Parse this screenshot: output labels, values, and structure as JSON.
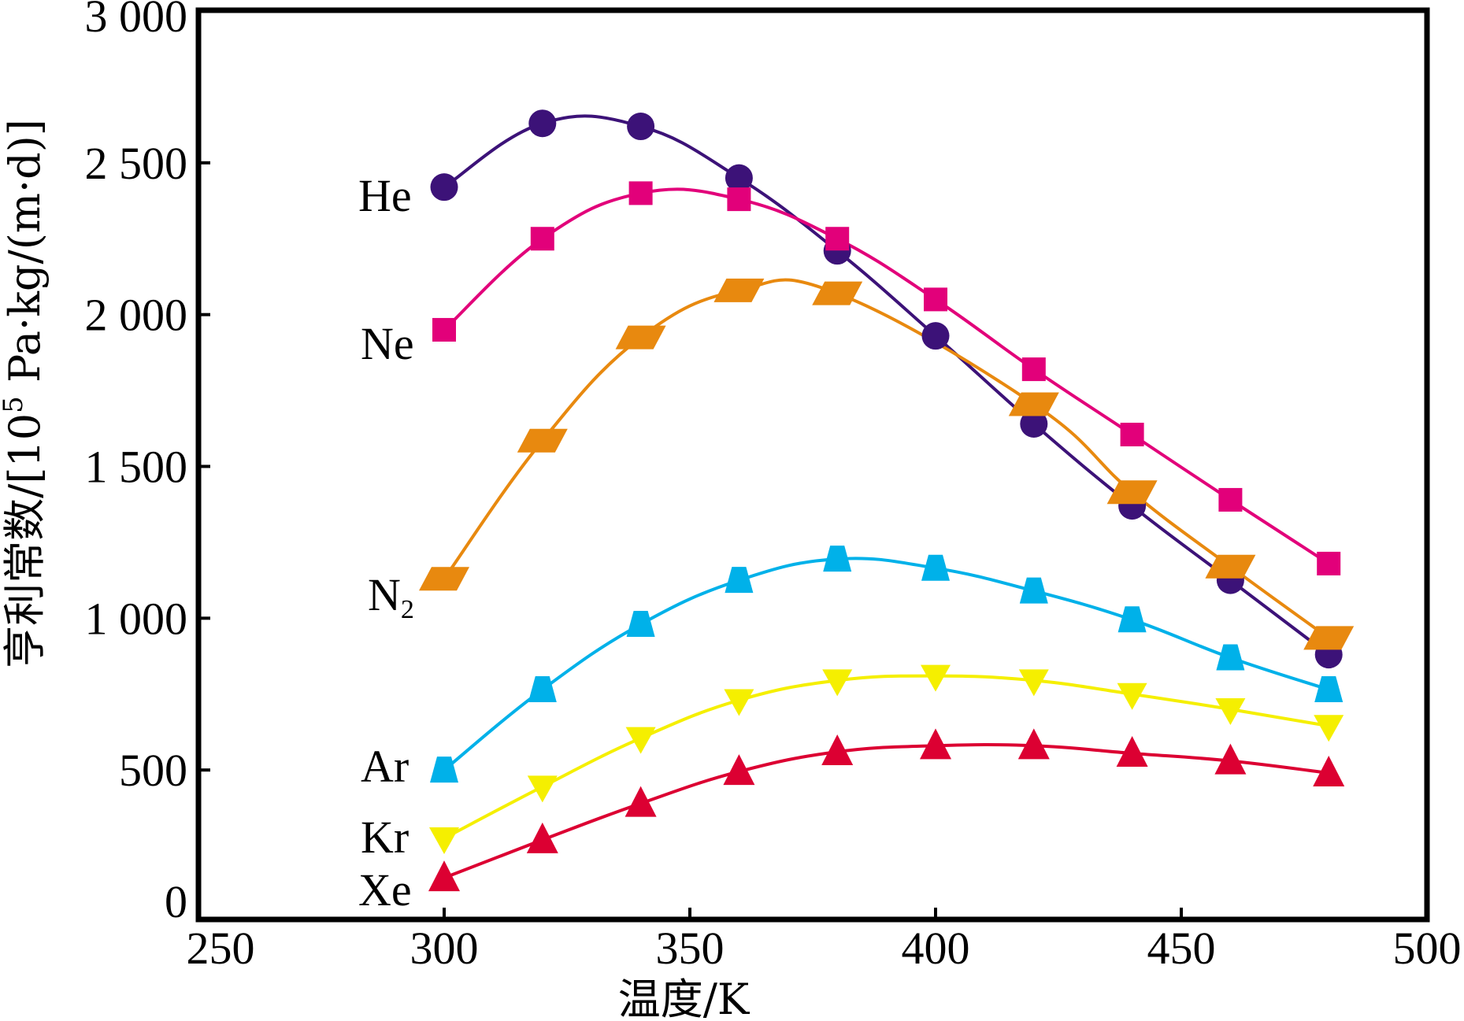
{
  "chart_data": {
    "type": "line",
    "title": "",
    "xlabel": "温度/K",
    "ylabel": "亨利常数/[10⁵ Pa·kg/(m·d)]",
    "ylabel_parts": {
      "prefix": "亨利常数/[10",
      "sup": "5",
      "suffix": " Pa·kg/(m·d)]"
    },
    "xlim": [
      250,
      500
    ],
    "ylim": [
      0,
      3000
    ],
    "xticks": [
      250,
      300,
      350,
      400,
      450,
      500
    ],
    "xtick_labels": [
      "250",
      "300",
      "350",
      "400",
      "450",
      "500"
    ],
    "yticks": [
      0,
      500,
      1000,
      1500,
      2000,
      2500,
      3000
    ],
    "ytick_labels": [
      "0",
      "500",
      "1 000",
      "1 500",
      "2 000",
      "2 500",
      "3 000"
    ],
    "grid": false,
    "legend": "inline labels at left end of each curve",
    "series": [
      {
        "name": "He",
        "label_main": "He",
        "label_sub": "",
        "color": "#3c1278",
        "marker": "circle",
        "x": [
          300,
          320,
          340,
          360,
          380,
          400,
          420,
          440,
          460,
          480
        ],
        "values": [
          2420,
          2630,
          2620,
          2450,
          2210,
          1930,
          1640,
          1370,
          1125,
          880
        ]
      },
      {
        "name": "Ne",
        "label_main": "Ne",
        "label_sub": "",
        "color": "#e2007a",
        "marker": "square",
        "x": [
          300,
          320,
          340,
          360,
          380,
          400,
          420,
          440,
          460,
          480
        ],
        "values": [
          1950,
          2250,
          2400,
          2380,
          2250,
          2050,
          1820,
          1605,
          1390,
          1180
        ]
      },
      {
        "name": "N₂",
        "label_main": "N",
        "label_sub": "2",
        "color": "#e8890f",
        "marker": "parallelogram",
        "x": [
          300,
          320,
          340,
          360,
          380,
          420,
          440,
          460,
          480
        ],
        "values": [
          1130,
          1585,
          1925,
          2080,
          2070,
          1705,
          1415,
          1170,
          935
        ]
      },
      {
        "name": "Ar",
        "label_main": "Ar",
        "label_sub": "",
        "color": "#00b1e9",
        "marker": "trapezoid",
        "x": [
          300,
          320,
          340,
          360,
          380,
          400,
          420,
          440,
          460,
          480
        ],
        "values": [
          500,
          765,
          980,
          1125,
          1195,
          1165,
          1090,
          995,
          870,
          765
        ]
      },
      {
        "name": "Kr",
        "label_main": "Kr",
        "label_sub": "",
        "color": "#f5ef00",
        "marker": "triangle-down",
        "x": [
          300,
          320,
          340,
          360,
          380,
          400,
          420,
          440,
          460,
          480
        ],
        "values": [
          275,
          445,
          605,
          730,
          795,
          810,
          795,
          750,
          700,
          645
        ]
      },
      {
        "name": "Xe",
        "label_main": "Xe",
        "label_sub": "",
        "color": "#dc0032",
        "marker": "triangle-up",
        "x": [
          300,
          320,
          340,
          360,
          380,
          400,
          420,
          440,
          460,
          480
        ],
        "values": [
          145,
          270,
          390,
          495,
          560,
          580,
          580,
          555,
          530,
          490
        ]
      }
    ]
  }
}
